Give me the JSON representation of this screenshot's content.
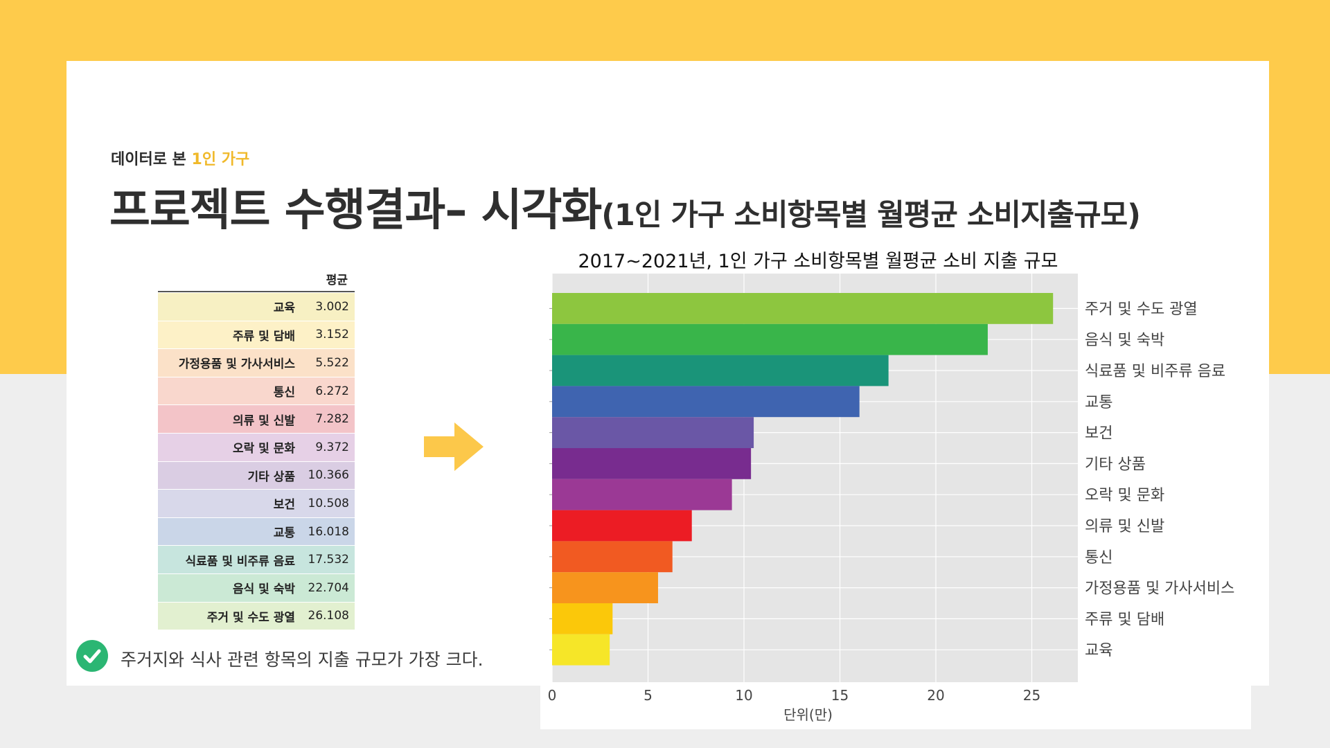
{
  "header": {
    "subtitle_prefix": "데이터로 본",
    "subtitle_highlight": "1인 가구",
    "title_main": "프로젝트 수행결과– 시각화",
    "title_paren": "(1인 가구 소비항목별 월평균 소비지출규모)"
  },
  "table": {
    "column_header": "평균",
    "rows": [
      {
        "label": "교육",
        "value": "3.002",
        "color": "#f7f0c3"
      },
      {
        "label": "주류 및 담배",
        "value": "3.152",
        "color": "#fdf1c7"
      },
      {
        "label": "가정용품 및 가사서비스",
        "value": "5.522",
        "color": "#fbe1c8"
      },
      {
        "label": "통신",
        "value": "6.272",
        "color": "#f9d7cd"
      },
      {
        "label": "의류 및 신발",
        "value": "7.282",
        "color": "#f3c4c8"
      },
      {
        "label": "오락 및 문화",
        "value": "9.372",
        "color": "#e6d0e6"
      },
      {
        "label": "기타 상품",
        "value": "10.366",
        "color": "#dacde3"
      },
      {
        "label": "보건",
        "value": "10.508",
        "color": "#d8d8ea"
      },
      {
        "label": "교통",
        "value": "16.018",
        "color": "#cad6e8"
      },
      {
        "label": "식료품 및 비주류 음료",
        "value": "17.532",
        "color": "#c7e5de"
      },
      {
        "label": "음식 및 숙박",
        "value": "22.704",
        "color": "#cbe9d5"
      },
      {
        "label": "주거 및 수도 광열",
        "value": "26.108",
        "color": "#e2f0d0"
      }
    ]
  },
  "note": {
    "text": "주거지와 식사 관련 항목의 지출 규모가 가장 크다.",
    "icon": "check-circle-icon"
  },
  "colors": {
    "background_band": "#fecb4b",
    "highlight": "#f0b92a",
    "arrow": "#fcc84a",
    "check": "#2bb673",
    "plot_bg": "#e5e5e5"
  },
  "chart_data": {
    "type": "bar",
    "orientation": "horizontal",
    "title": "2017~2021년, 1인 가구 소비항목별 월평균 소비 지출 규모",
    "xlabel": "단위(만)",
    "ylabel": "",
    "xlim": [
      0,
      27.4
    ],
    "xticks": [
      0,
      5,
      10,
      15,
      20,
      25
    ],
    "grid": true,
    "legend": "none",
    "category_axis_side": "right",
    "categories": [
      "주거 및 수도 광열",
      "음식 및 숙박",
      "식료품 및 비주류 음료",
      "교통",
      "보건",
      "기타 상품",
      "오락 및 문화",
      "의류 및 신발",
      "통신",
      "가정용품 및 가사서비스",
      "주류 및 담배",
      "교육"
    ],
    "values": [
      26.108,
      22.704,
      17.532,
      16.018,
      10.508,
      10.366,
      9.372,
      7.282,
      6.272,
      5.522,
      3.152,
      3.002
    ],
    "bar_colors": [
      "#8dc63f",
      "#39b54a",
      "#1a9479",
      "#3f64b0",
      "#6a57a6",
      "#782c8f",
      "#9b3995",
      "#ec1c24",
      "#f15a22",
      "#f7941d",
      "#fbc80a",
      "#f6e628"
    ]
  }
}
